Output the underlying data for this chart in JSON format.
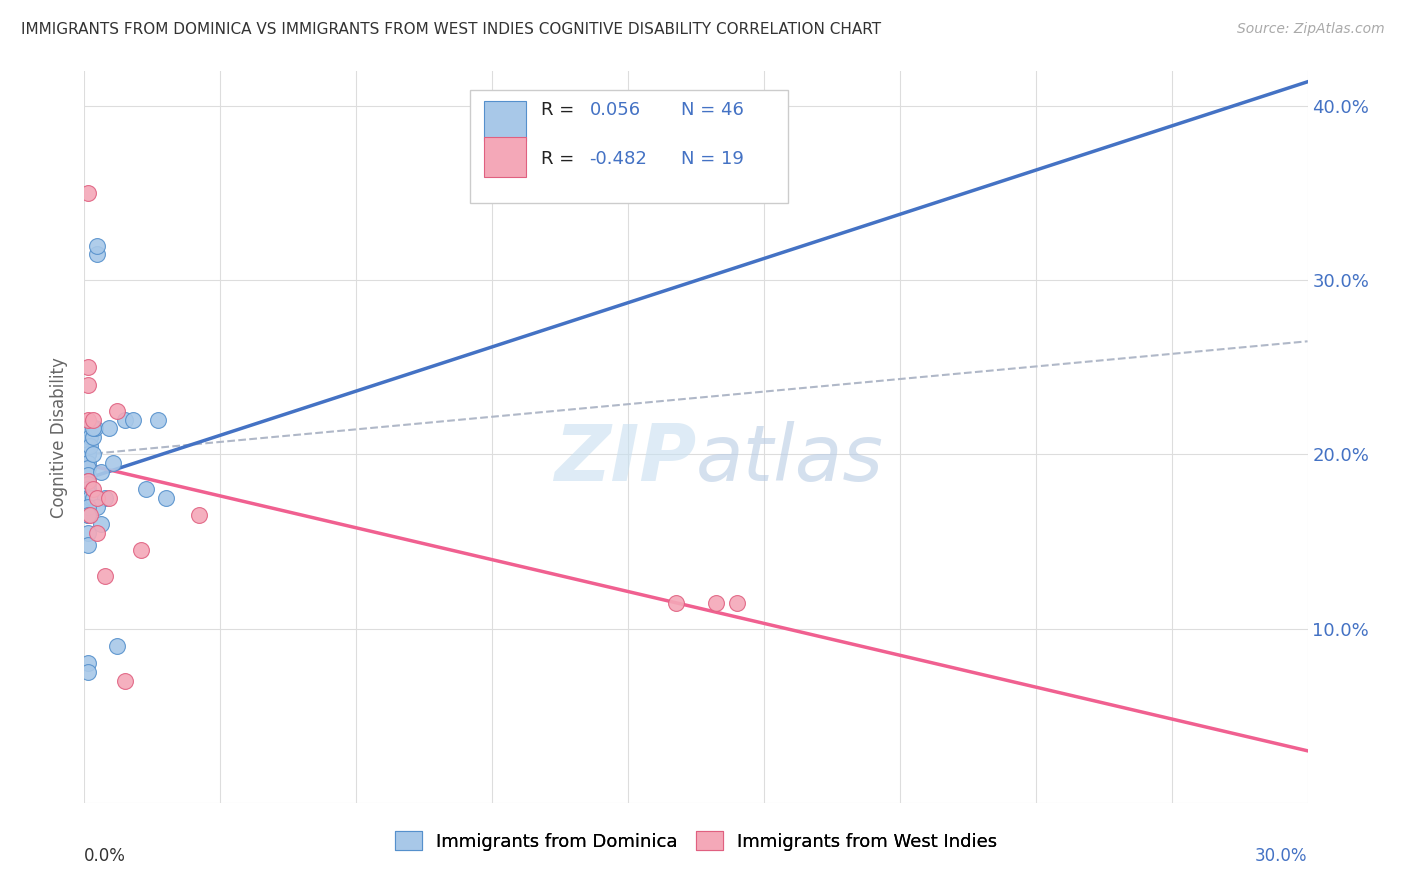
{
  "title": "IMMIGRANTS FROM DOMINICA VS IMMIGRANTS FROM WEST INDIES COGNITIVE DISABILITY CORRELATION CHART",
  "source": "Source: ZipAtlas.com",
  "ylabel": "Cognitive Disability",
  "xmin": 0.0,
  "xmax": 0.3,
  "ymin": 0.0,
  "ymax": 0.42,
  "dominica_color": "#a8c8e8",
  "west_indies_color": "#f4a8b8",
  "dominica_edge_color": "#5590cc",
  "west_indies_edge_color": "#e06080",
  "dominica_line_color": "#4472c4",
  "west_indies_line_color": "#f06090",
  "dash_line_color": "#b0b8c8",
  "dominica_x": [
    0.0005,
    0.0005,
    0.0008,
    0.0008,
    0.001,
    0.001,
    0.001,
    0.001,
    0.001,
    0.001,
    0.001,
    0.001,
    0.001,
    0.001,
    0.001,
    0.001,
    0.001,
    0.0015,
    0.0015,
    0.0015,
    0.002,
    0.002,
    0.002,
    0.0025,
    0.003,
    0.003,
    0.004,
    0.005,
    0.006,
    0.007,
    0.008,
    0.01,
    0.012,
    0.015,
    0.018,
    0.02,
    0.003,
    0.004,
    0.001,
    0.001,
    0.001,
    0.002,
    0.001,
    0.001,
    0.001,
    0.001
  ],
  "dominica_y": [
    0.21,
    0.19,
    0.215,
    0.2,
    0.215,
    0.205,
    0.2,
    0.195,
    0.192,
    0.188,
    0.185,
    0.183,
    0.18,
    0.178,
    0.175,
    0.172,
    0.168,
    0.21,
    0.205,
    0.175,
    0.21,
    0.2,
    0.175,
    0.215,
    0.315,
    0.32,
    0.19,
    0.175,
    0.215,
    0.195,
    0.09,
    0.22,
    0.22,
    0.18,
    0.22,
    0.175,
    0.17,
    0.16,
    0.165,
    0.155,
    0.148,
    0.215,
    0.08,
    0.075,
    0.17,
    0.165
  ],
  "west_indies_x": [
    0.001,
    0.001,
    0.001,
    0.001,
    0.001,
    0.0015,
    0.002,
    0.002,
    0.003,
    0.003,
    0.005,
    0.006,
    0.008,
    0.01,
    0.014,
    0.028,
    0.145,
    0.155,
    0.16
  ],
  "west_indies_y": [
    0.35,
    0.25,
    0.24,
    0.22,
    0.185,
    0.165,
    0.22,
    0.18,
    0.175,
    0.155,
    0.13,
    0.175,
    0.225,
    0.07,
    0.145,
    0.165,
    0.115,
    0.115,
    0.115
  ],
  "background_color": "#ffffff",
  "grid_color": "#dddddd",
  "yticks": [
    0.0,
    0.1,
    0.2,
    0.3,
    0.4
  ],
  "ytick_labels": [
    "",
    "10.0%",
    "20.0%",
    "30.0%",
    "40.0%"
  ]
}
